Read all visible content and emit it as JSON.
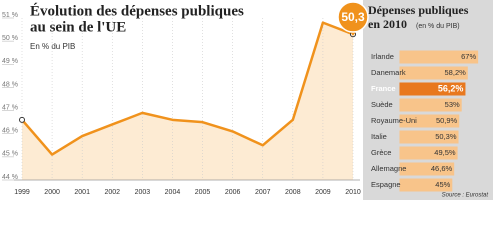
{
  "charts": [
    {
      "type": "line",
      "title": [
        "Évolution des dépenses publiques",
        "au sein de l'UE"
      ],
      "subtitle": "En % du PIB",
      "categories": [
        "1999",
        "2000",
        "2001",
        "2002",
        "2003",
        "2004",
        "2005",
        "2006",
        "2007",
        "2008",
        "2009",
        "2010"
      ],
      "values": [
        46.6,
        45.1,
        45.9,
        46.4,
        46.9,
        46.6,
        46.5,
        46.1,
        45.5,
        46.6,
        50.8,
        50.3
      ],
      "value_labels": [
        null,
        null,
        null,
        null,
        null,
        null,
        null,
        null,
        null,
        null,
        null,
        "50,3"
      ],
      "color": "#f0921c",
      "area_color": "#fdebd3",
      "ylim": [
        44,
        51
      ],
      "yticks": [
        {
          "value": 44,
          "label": "44 %"
        },
        {
          "value": 45,
          "label": "45 %"
        },
        {
          "value": 46,
          "label": "46 %"
        },
        {
          "value": 47,
          "label": "47 %"
        },
        {
          "value": 48,
          "label": "48 %"
        },
        {
          "value": 49,
          "label": "49 %"
        },
        {
          "value": 50,
          "label": "50 %"
        },
        {
          "value": 51,
          "label": "51 %"
        }
      ],
      "grid": true
    },
    {
      "type": "bar",
      "orientation": "horizontal",
      "title": "Dépenses publiques",
      "title2": "en 2010",
      "unit": "(en % du PIB)",
      "categories": [
        "Irlande",
        "Danemark",
        "France",
        "Suède",
        "Royaume-Uni",
        "Italie",
        "Grèce",
        "Allemagne",
        "Espagne"
      ],
      "values": [
        67,
        58.2,
        56.2,
        53,
        50.9,
        50.3,
        49.5,
        46.6,
        45
      ],
      "value_labels": [
        "67%",
        "58,2%",
        "56,2%",
        "53%",
        "50,9%",
        "50,3%",
        "49,5%",
        "46,6%",
        "45%"
      ],
      "colors": [
        "#f8c48a",
        "#f8c48a",
        "#e8781e",
        "#f8c48a",
        "#f8c48a",
        "#f8c48a",
        "#f8c48a",
        "#f8c48a",
        "#f8c48a"
      ],
      "background": "#d9d9d9",
      "xlim": [
        -20,
        72
      ],
      "source": "Source : Eurostat"
    }
  ]
}
